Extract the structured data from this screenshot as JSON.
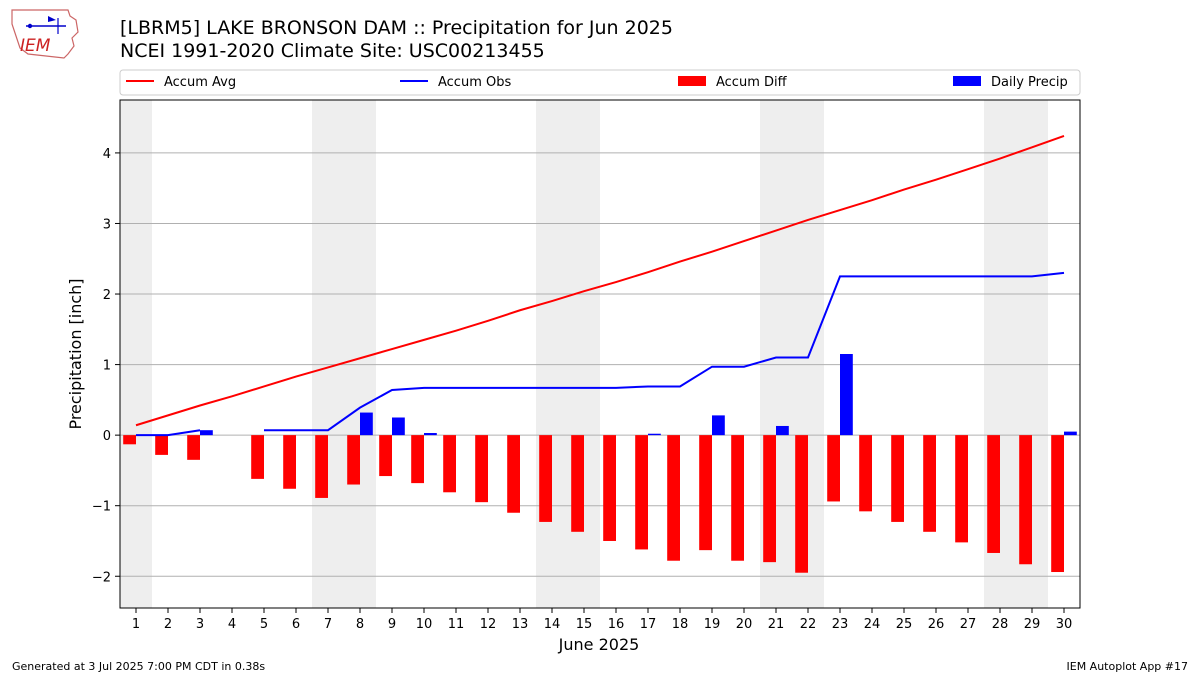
{
  "header": {
    "title_line1": "[LBRM5] LAKE BRONSON DAM :: Precipitation for Jun 2025",
    "title_line2": "NCEI 1991-2020 Climate Site: USC00213455",
    "logo_text": "IEM"
  },
  "footer": {
    "generated": "Generated at 3 Jul 2025 7:00 PM CDT in 0.38s",
    "app": "IEM Autoplot App #17"
  },
  "colors": {
    "accum_avg": "#ff0000",
    "accum_obs": "#0000ff",
    "accum_diff": "#ff0000",
    "daily_precip": "#0000ff",
    "weekend_shade": "#eeeeee",
    "grid": "#b0b0b0"
  },
  "chart_data": {
    "type": "bar",
    "xlabel": "June 2025",
    "ylabel": "Precipitation [inch]",
    "ylim": [
      -2.45,
      4.75
    ],
    "xlim": [
      0.5,
      30.5
    ],
    "grid": "horizontal",
    "legend_placement": "top",
    "yticks": [
      -2,
      -1,
      0,
      1,
      2,
      3,
      4
    ],
    "ytick_labels": [
      "−2",
      "−1",
      "0",
      "1",
      "2",
      "3",
      "4"
    ],
    "days": [
      1,
      2,
      3,
      4,
      5,
      6,
      7,
      8,
      9,
      10,
      11,
      12,
      13,
      14,
      15,
      16,
      17,
      18,
      19,
      20,
      21,
      22,
      23,
      24,
      25,
      26,
      27,
      28,
      29,
      30
    ],
    "x_tick_labels": [
      "1",
      "2",
      "3",
      "4",
      "5",
      "6",
      "7",
      "8",
      "9",
      "10",
      "11",
      "12",
      "13",
      "14",
      "15",
      "16",
      "17",
      "18",
      "19",
      "20",
      "21",
      "22",
      "23",
      "24",
      "25",
      "26",
      "27",
      "28",
      "29",
      "30"
    ],
    "weekend_days": [
      1,
      7,
      8,
      14,
      15,
      21,
      22,
      28,
      29
    ],
    "series": [
      {
        "name": "Accum Avg",
        "kind": "line",
        "days": [
          1,
          2,
          3,
          4,
          5,
          6,
          7,
          8,
          9,
          10,
          11,
          12,
          13,
          14,
          15,
          16,
          17,
          18,
          19,
          20,
          21,
          22,
          23,
          24,
          25,
          26,
          27,
          28,
          29,
          30
        ],
        "values": [
          0.14,
          0.28,
          0.42,
          0.55,
          0.69,
          0.83,
          0.96,
          1.09,
          1.22,
          1.35,
          1.48,
          1.62,
          1.77,
          1.9,
          2.04,
          2.17,
          2.31,
          2.46,
          2.6,
          2.75,
          2.9,
          3.05,
          3.19,
          3.33,
          3.48,
          3.62,
          3.77,
          3.92,
          4.08,
          4.24
        ]
      },
      {
        "name": "Accum Obs",
        "kind": "line",
        "segments": [
          {
            "days": [
              1,
              2,
              3
            ],
            "values": [
              0.0,
              0.0,
              0.07
            ]
          },
          {
            "days": [
              5,
              6,
              7,
              8,
              9,
              10,
              11,
              12,
              13,
              14,
              15,
              16,
              17,
              18,
              19,
              20,
              21,
              22,
              23,
              24,
              25,
              26,
              27,
              28,
              29,
              30
            ],
            "values": [
              0.07,
              0.07,
              0.07,
              0.39,
              0.64,
              0.67,
              0.67,
              0.67,
              0.67,
              0.67,
              0.67,
              0.67,
              0.69,
              0.69,
              0.97,
              0.97,
              1.1,
              1.1,
              2.25,
              2.25,
              2.25,
              2.25,
              2.25,
              2.25,
              2.25,
              2.3
            ]
          }
        ]
      },
      {
        "name": "Accum Diff",
        "kind": "bar",
        "days": [
          1,
          2,
          3,
          5,
          6,
          7,
          8,
          9,
          10,
          11,
          12,
          13,
          14,
          15,
          16,
          17,
          18,
          19,
          20,
          21,
          22,
          23,
          24,
          25,
          26,
          27,
          28,
          29,
          30
        ],
        "values": [
          -0.13,
          -0.28,
          -0.35,
          -0.62,
          -0.76,
          -0.89,
          -0.7,
          -0.58,
          -0.68,
          -0.81,
          -0.95,
          -1.1,
          -1.23,
          -1.37,
          -1.5,
          -1.62,
          -1.78,
          -1.63,
          -1.78,
          -1.8,
          -1.95,
          -0.94,
          -1.08,
          -1.23,
          -1.37,
          -1.52,
          -1.67,
          -1.83,
          -1.94
        ]
      },
      {
        "name": "Daily Precip",
        "kind": "bar",
        "days": [
          3,
          8,
          9,
          10,
          17,
          19,
          21,
          23,
          30
        ],
        "values": [
          0.07,
          0.32,
          0.25,
          0.03,
          0.02,
          0.28,
          0.13,
          1.15,
          0.05
        ]
      }
    ]
  }
}
